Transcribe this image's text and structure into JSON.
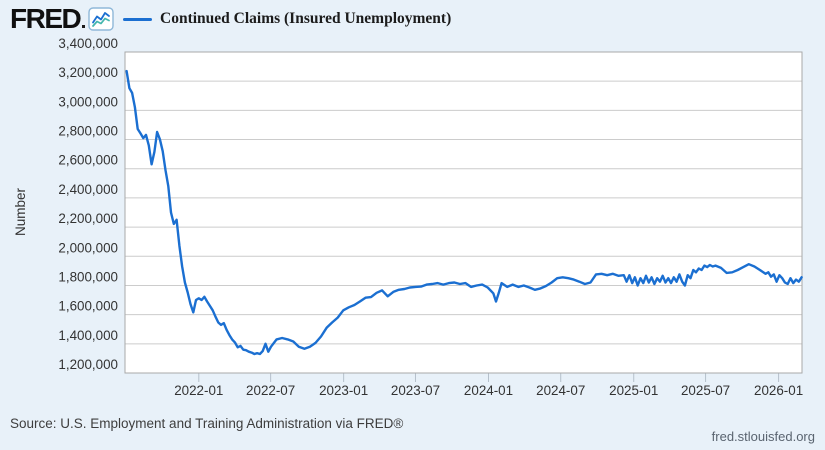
{
  "header": {
    "logo_text": "FRED",
    "logo_icon": "fred-sparkline-icon"
  },
  "footer": {
    "source_text": "Source: U.S. Employment and Training Administration via FRED®",
    "watermark": "fred.stlouisfed.org"
  },
  "colors": {
    "page_background": "#e8f1f9",
    "plot_background": "#ffffff",
    "gridline": "#cccccc",
    "plot_border": "#a9a9a9",
    "tick_mark": "#b5c0cb",
    "series_blue": "#1b6fd1",
    "logo_icon_teal": "#45b7ae"
  },
  "chart_data": {
    "type": "line",
    "title": "Continued Claims (Insured Unemployment)",
    "xlabel": "",
    "ylabel": "Number",
    "grid": "horizontal",
    "legend_position": "top-left",
    "series_color": "#1b6fd1",
    "x_domain": [
      "2021-06-29",
      "2026-03-01"
    ],
    "y_domain": [
      1200000,
      3400000
    ],
    "y_ticks": [
      3400000,
      3200000,
      3000000,
      2800000,
      2600000,
      2400000,
      2200000,
      2000000,
      1800000,
      1600000,
      1400000,
      1200000
    ],
    "y_tick_labels": [
      "3,400,000",
      "3,200,000",
      "3,000,000",
      "2,800,000",
      "2,600,000",
      "2,400,000",
      "2,200,000",
      "2,000,000",
      "1,800,000",
      "1,600,000",
      "1,400,000",
      "1,200,000"
    ],
    "x_ticks": [
      {
        "label": "2022-01",
        "date": "2022-01-01"
      },
      {
        "label": "2022-07",
        "date": "2022-07-01"
      },
      {
        "label": "2023-01",
        "date": "2023-01-01"
      },
      {
        "label": "2023-07",
        "date": "2023-07-01"
      },
      {
        "label": "2024-01",
        "date": "2024-01-01"
      },
      {
        "label": "2024-07",
        "date": "2024-07-01"
      },
      {
        "label": "2025-01",
        "date": "2025-01-01"
      },
      {
        "label": "2025-07",
        "date": "2025-07-01"
      },
      {
        "label": "2026-01",
        "date": "2026-01-01"
      }
    ],
    "series": [
      {
        "name": "Continued Claims (Insured Unemployment)",
        "points": [
          [
            "2021-07-03",
            3269000
          ],
          [
            "2021-07-10",
            3152000
          ],
          [
            "2021-07-17",
            3120000
          ],
          [
            "2021-07-24",
            3022000
          ],
          [
            "2021-07-31",
            2872000
          ],
          [
            "2021-08-07",
            2842000
          ],
          [
            "2021-08-14",
            2810000
          ],
          [
            "2021-08-21",
            2832000
          ],
          [
            "2021-08-28",
            2760000
          ],
          [
            "2021-09-04",
            2630000
          ],
          [
            "2021-09-11",
            2715000
          ],
          [
            "2021-09-18",
            2852000
          ],
          [
            "2021-09-25",
            2802000
          ],
          [
            "2021-10-02",
            2720000
          ],
          [
            "2021-10-09",
            2590000
          ],
          [
            "2021-10-16",
            2480000
          ],
          [
            "2021-10-23",
            2300000
          ],
          [
            "2021-10-30",
            2222000
          ],
          [
            "2021-11-06",
            2250000
          ],
          [
            "2021-11-13",
            2072000
          ],
          [
            "2021-11-20",
            1932000
          ],
          [
            "2021-11-27",
            1820000
          ],
          [
            "2021-12-04",
            1752000
          ],
          [
            "2021-12-11",
            1672000
          ],
          [
            "2021-12-18",
            1615000
          ],
          [
            "2021-12-25",
            1700000
          ],
          [
            "2022-01-01",
            1712000
          ],
          [
            "2022-01-08",
            1700000
          ],
          [
            "2022-01-15",
            1722000
          ],
          [
            "2022-01-22",
            1690000
          ],
          [
            "2022-01-29",
            1660000
          ],
          [
            "2022-02-05",
            1630000
          ],
          [
            "2022-02-12",
            1586000
          ],
          [
            "2022-02-19",
            1546000
          ],
          [
            "2022-02-26",
            1530000
          ],
          [
            "2022-03-05",
            1542000
          ],
          [
            "2022-03-12",
            1496000
          ],
          [
            "2022-03-19",
            1460000
          ],
          [
            "2022-03-26",
            1430000
          ],
          [
            "2022-04-02",
            1410000
          ],
          [
            "2022-04-09",
            1376000
          ],
          [
            "2022-04-16",
            1386000
          ],
          [
            "2022-04-23",
            1360000
          ],
          [
            "2022-04-30",
            1356000
          ],
          [
            "2022-05-07",
            1346000
          ],
          [
            "2022-05-14",
            1340000
          ],
          [
            "2022-05-21",
            1330000
          ],
          [
            "2022-05-28",
            1336000
          ],
          [
            "2022-06-04",
            1330000
          ],
          [
            "2022-06-11",
            1350000
          ],
          [
            "2022-06-18",
            1400000
          ],
          [
            "2022-06-25",
            1346000
          ],
          [
            "2022-07-02",
            1380000
          ],
          [
            "2022-07-16",
            1430000
          ],
          [
            "2022-07-30",
            1440000
          ],
          [
            "2022-08-13",
            1430000
          ],
          [
            "2022-08-27",
            1416000
          ],
          [
            "2022-09-10",
            1380000
          ],
          [
            "2022-09-24",
            1366000
          ],
          [
            "2022-10-08",
            1380000
          ],
          [
            "2022-10-22",
            1406000
          ],
          [
            "2022-11-05",
            1450000
          ],
          [
            "2022-11-19",
            1510000
          ],
          [
            "2022-12-03",
            1546000
          ],
          [
            "2022-12-17",
            1580000
          ],
          [
            "2022-12-31",
            1630000
          ],
          [
            "2023-01-14",
            1650000
          ],
          [
            "2023-01-28",
            1666000
          ],
          [
            "2023-02-11",
            1690000
          ],
          [
            "2023-02-25",
            1716000
          ],
          [
            "2023-03-11",
            1720000
          ],
          [
            "2023-03-25",
            1750000
          ],
          [
            "2023-04-08",
            1766000
          ],
          [
            "2023-04-22",
            1726000
          ],
          [
            "2023-05-06",
            1756000
          ],
          [
            "2023-05-20",
            1770000
          ],
          [
            "2023-06-03",
            1776000
          ],
          [
            "2023-06-17",
            1786000
          ],
          [
            "2023-07-01",
            1790000
          ],
          [
            "2023-07-15",
            1792000
          ],
          [
            "2023-07-29",
            1806000
          ],
          [
            "2023-08-12",
            1810000
          ],
          [
            "2023-08-26",
            1816000
          ],
          [
            "2023-09-09",
            1806000
          ],
          [
            "2023-09-23",
            1816000
          ],
          [
            "2023-10-07",
            1820000
          ],
          [
            "2023-10-21",
            1810000
          ],
          [
            "2023-11-04",
            1816000
          ],
          [
            "2023-11-18",
            1790000
          ],
          [
            "2023-12-02",
            1800000
          ],
          [
            "2023-12-16",
            1806000
          ],
          [
            "2023-12-30",
            1786000
          ],
          [
            "2024-01-13",
            1746000
          ],
          [
            "2024-01-20",
            1690000
          ],
          [
            "2024-01-27",
            1750000
          ],
          [
            "2024-02-03",
            1816000
          ],
          [
            "2024-02-17",
            1790000
          ],
          [
            "2024-03-02",
            1806000
          ],
          [
            "2024-03-16",
            1790000
          ],
          [
            "2024-03-30",
            1800000
          ],
          [
            "2024-04-13",
            1786000
          ],
          [
            "2024-04-27",
            1770000
          ],
          [
            "2024-05-11",
            1780000
          ],
          [
            "2024-05-25",
            1796000
          ],
          [
            "2024-06-08",
            1820000
          ],
          [
            "2024-06-22",
            1850000
          ],
          [
            "2024-07-06",
            1856000
          ],
          [
            "2024-07-20",
            1850000
          ],
          [
            "2024-08-03",
            1840000
          ],
          [
            "2024-08-17",
            1826000
          ],
          [
            "2024-08-31",
            1810000
          ],
          [
            "2024-09-14",
            1820000
          ],
          [
            "2024-09-28",
            1876000
          ],
          [
            "2024-10-12",
            1880000
          ],
          [
            "2024-10-26",
            1870000
          ],
          [
            "2024-11-09",
            1880000
          ],
          [
            "2024-11-23",
            1866000
          ],
          [
            "2024-12-07",
            1870000
          ],
          [
            "2024-12-14",
            1826000
          ],
          [
            "2024-12-21",
            1870000
          ],
          [
            "2024-12-28",
            1816000
          ],
          [
            "2025-01-04",
            1856000
          ],
          [
            "2025-01-11",
            1800000
          ],
          [
            "2025-01-18",
            1850000
          ],
          [
            "2025-01-25",
            1816000
          ],
          [
            "2025-02-01",
            1866000
          ],
          [
            "2025-02-08",
            1820000
          ],
          [
            "2025-02-15",
            1856000
          ],
          [
            "2025-02-22",
            1810000
          ],
          [
            "2025-03-01",
            1850000
          ],
          [
            "2025-03-08",
            1826000
          ],
          [
            "2025-03-15",
            1866000
          ],
          [
            "2025-03-22",
            1820000
          ],
          [
            "2025-03-29",
            1850000
          ],
          [
            "2025-04-05",
            1816000
          ],
          [
            "2025-04-12",
            1856000
          ],
          [
            "2025-04-19",
            1826000
          ],
          [
            "2025-04-26",
            1876000
          ],
          [
            "2025-05-03",
            1826000
          ],
          [
            "2025-05-10",
            1800000
          ],
          [
            "2025-05-17",
            1870000
          ],
          [
            "2025-05-24",
            1850000
          ],
          [
            "2025-05-31",
            1906000
          ],
          [
            "2025-06-07",
            1890000
          ],
          [
            "2025-06-14",
            1916000
          ],
          [
            "2025-06-21",
            1906000
          ],
          [
            "2025-06-28",
            1936000
          ],
          [
            "2025-07-05",
            1926000
          ],
          [
            "2025-07-12",
            1940000
          ],
          [
            "2025-07-19",
            1930000
          ],
          [
            "2025-07-26",
            1936000
          ],
          [
            "2025-08-09",
            1920000
          ],
          [
            "2025-08-23",
            1886000
          ],
          [
            "2025-09-06",
            1890000
          ],
          [
            "2025-09-20",
            1906000
          ],
          [
            "2025-10-04",
            1926000
          ],
          [
            "2025-10-18",
            1946000
          ],
          [
            "2025-11-01",
            1930000
          ],
          [
            "2025-11-15",
            1906000
          ],
          [
            "2025-11-29",
            1880000
          ],
          [
            "2025-12-06",
            1890000
          ],
          [
            "2025-12-13",
            1860000
          ],
          [
            "2025-12-20",
            1876000
          ],
          [
            "2025-12-27",
            1826000
          ],
          [
            "2026-01-03",
            1870000
          ],
          [
            "2026-01-10",
            1850000
          ],
          [
            "2026-01-17",
            1820000
          ],
          [
            "2026-01-24",
            1810000
          ],
          [
            "2026-01-31",
            1850000
          ],
          [
            "2026-02-07",
            1816000
          ],
          [
            "2026-02-14",
            1840000
          ],
          [
            "2026-02-21",
            1826000
          ],
          [
            "2026-02-28",
            1856000
          ]
        ]
      }
    ]
  }
}
